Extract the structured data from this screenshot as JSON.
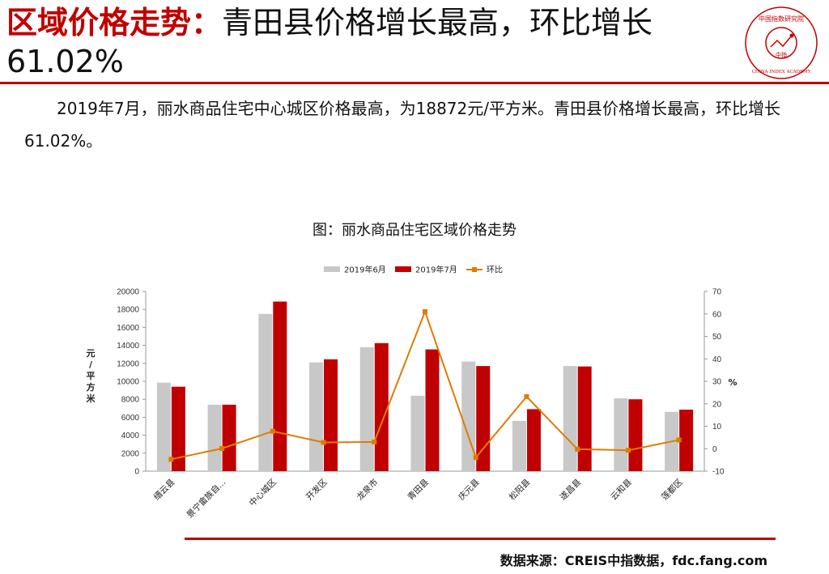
{
  "header": {
    "title_highlight": "区域价格走势：",
    "title_rest": "青田县价格增长最高，环比增长61.02%"
  },
  "logo": {
    "top_text": "中国指数研究院",
    "center_text": "中指",
    "bottom_text": "CHINA INDEX ACADEMY",
    "color": "#c00000"
  },
  "body": {
    "paragraph": "2019年7月，丽水商品住宅中心城区价格最高，为18872元/平方米。青田县价格增长最高，环比增长61.02%。"
  },
  "chart_title": "图：丽水商品住宅区域价格走势",
  "chart_data": {
    "type": "bar",
    "categories": [
      "缙云县",
      "景宁畲族自...",
      "中心城区",
      "开发区",
      "龙泉市",
      "青田县",
      "庆元县",
      "松阳县",
      "遂昌县",
      "云和县",
      "莲都区"
    ],
    "series": [
      {
        "name": "2019年6月",
        "type": "bar",
        "axis": "left",
        "color": "#c8c8c8",
        "values": [
          9850,
          7400,
          17500,
          12100,
          13800,
          8400,
          12200,
          5600,
          11700,
          8100,
          6600
        ]
      },
      {
        "name": "2019年7月",
        "type": "bar",
        "axis": "left",
        "color": "#c00000",
        "values": [
          9400,
          7400,
          18872,
          12450,
          14250,
          13550,
          11700,
          6900,
          11650,
          8000,
          6850
        ]
      },
      {
        "name": "环比",
        "type": "line",
        "axis": "right",
        "color": "#e07b00",
        "values": [
          -4.7,
          0.1,
          7.8,
          2.8,
          3.0,
          61.02,
          -3.9,
          23.2,
          -0.2,
          -0.7,
          3.9
        ]
      }
    ],
    "y_left": {
      "label": "元/平方米",
      "min": 0,
      "max": 20000,
      "ticks": [
        0,
        2000,
        4000,
        6000,
        8000,
        10000,
        12000,
        14000,
        16000,
        18000,
        20000
      ]
    },
    "y_right": {
      "label": "%",
      "min": -10,
      "max": 70,
      "ticks": [
        -10,
        0,
        10,
        20,
        30,
        40,
        50,
        60,
        70
      ]
    },
    "legend": "top-center",
    "grid": false
  },
  "source": "数据来源：CREIS中指数据，fdc.fang.com"
}
